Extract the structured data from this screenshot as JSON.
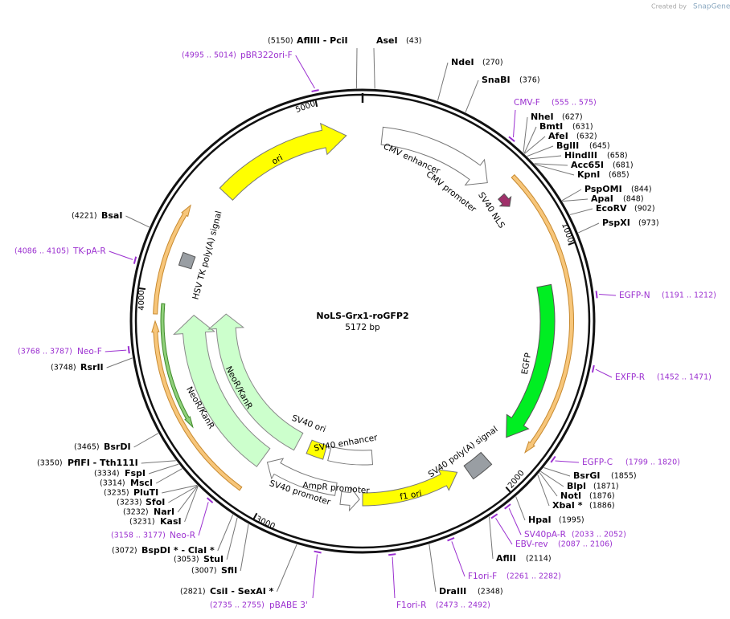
{
  "credit": "Created by",
  "brand": "SnapGene",
  "plasmid": {
    "name": "NoLS-Grx1-roGFP2",
    "length": "5172 bp"
  },
  "ticks": [
    "1000",
    "2000",
    "3000",
    "4000",
    "5000"
  ],
  "sites": [
    {
      "name": "AflIII  - PciI",
      "position": "(5150)"
    },
    {
      "name": "AseI",
      "position": "(43)"
    },
    {
      "name": "NdeI",
      "position": "(270)"
    },
    {
      "name": "SnaBI",
      "position": "(376)"
    },
    {
      "name": "NheI",
      "position": "(627)"
    },
    {
      "name": "BmtI",
      "position": "(631)"
    },
    {
      "name": "AfeI",
      "position": "(632)"
    },
    {
      "name": "BglII",
      "position": "(645)"
    },
    {
      "name": "HindIII",
      "position": "(658)"
    },
    {
      "name": "Acc65I",
      "position": "(681)"
    },
    {
      "name": "KpnI",
      "position": "(685)"
    },
    {
      "name": "PspOMI",
      "position": "(844)"
    },
    {
      "name": "ApaI",
      "position": "(848)"
    },
    {
      "name": "EcoRV",
      "position": "(902)"
    },
    {
      "name": "PspXI",
      "position": "(973)"
    },
    {
      "name": "BsrGI",
      "position": "(1855)"
    },
    {
      "name": "BlpI",
      "position": "(1871)"
    },
    {
      "name": "NotI",
      "position": "(1876)"
    },
    {
      "name": "XbaI *",
      "position": "(1886)"
    },
    {
      "name": "HpaI",
      "position": "(1995)"
    },
    {
      "name": "AflII",
      "position": "(2114)"
    },
    {
      "name": "DraIII",
      "position": "(2348)"
    },
    {
      "name": "CsiI  - SexAI *",
      "position": "(2821)"
    },
    {
      "name": "SfiI",
      "position": "(3007)"
    },
    {
      "name": "StuI",
      "position": "(3053)"
    },
    {
      "name": "BspDI *  - ClaI *",
      "position": "(3072)"
    },
    {
      "name": "KasI",
      "position": "(3231)"
    },
    {
      "name": "NarI",
      "position": "(3232)"
    },
    {
      "name": "SfoI",
      "position": "(3233)"
    },
    {
      "name": "PluTI",
      "position": "(3235)"
    },
    {
      "name": "MscI",
      "position": "(3314)"
    },
    {
      "name": "FspI",
      "position": "(3334)"
    },
    {
      "name": "PflFI  - Tth111I",
      "position": "(3350)"
    },
    {
      "name": "BsrDI",
      "position": "(3465)"
    },
    {
      "name": "RsrII",
      "position": "(3748)"
    },
    {
      "name": "BsaI",
      "position": "(4221)"
    }
  ],
  "primers": [
    {
      "name": "pBR322ori-F",
      "range": "(4995 .. 5014)"
    },
    {
      "name": "CMV-F",
      "range": "(555 .. 575)"
    },
    {
      "name": "EGFP-N",
      "range": "(1191 .. 1212)"
    },
    {
      "name": "EXFP-R",
      "range": "(1452 .. 1471)"
    },
    {
      "name": "EGFP-C",
      "range": "(1799 .. 1820)"
    },
    {
      "name": "SV40pA-R",
      "range": "(2033 .. 2052)"
    },
    {
      "name": "EBV-rev",
      "range": "(2087 .. 2106)"
    },
    {
      "name": "F1ori-F",
      "range": "(2261 .. 2282)"
    },
    {
      "name": "F1ori-R",
      "range": "(2473 .. 2492)"
    },
    {
      "name": "pBABE 3'",
      "range": "(2735 .. 2755)"
    },
    {
      "name": "Neo-R",
      "range": "(3158 .. 3177)"
    },
    {
      "name": "Neo-F",
      "range": "(3768 .. 3787)"
    },
    {
      "name": "TK-pA-R",
      "range": "(4086 .. 4105)"
    }
  ],
  "features": [
    "ori",
    "CMV enhancer",
    "CMV promoter",
    "SV40 NLS",
    "EGFP",
    "SV40 poly(A) signal",
    "f1 ori",
    "AmpR promoter",
    "SV40 promoter",
    "SV40 ori",
    "SV40 enhancer",
    "NeoR/KanR",
    "NeoR/KanR",
    "HSV TK poly(A) signal"
  ]
}
